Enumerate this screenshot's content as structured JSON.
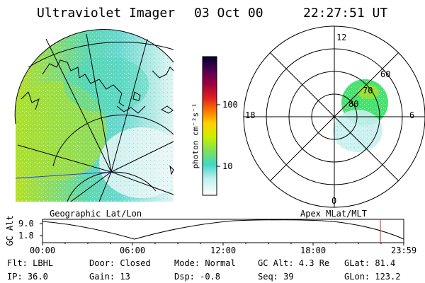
{
  "header": {
    "title": "Ultraviolet Imager",
    "date": "03 Oct 00",
    "time": "22:27:51 UT"
  },
  "colorbar": {
    "unit_label": "photon cm⁻²s⁻¹",
    "ticks": [
      "100",
      "10"
    ]
  },
  "left_panel": {
    "caption": "Geographic Lat/Lon"
  },
  "polar_panel": {
    "caption": "Apex MLat/MLT",
    "mlt_labels": [
      "12",
      "18",
      "6",
      "0"
    ],
    "lat_labels": [
      "60",
      "70",
      "80"
    ]
  },
  "timeline": {
    "ylabel": "GC Alt",
    "yticks": [
      "9.0",
      "1.8"
    ],
    "xticks": [
      "00:00",
      "06:00",
      "12:00",
      "18:00",
      "23:59"
    ]
  },
  "status": {
    "filter": "Flt: LBHL",
    "ip": "IP: 36.0",
    "door": "Door: Closed",
    "gain": "Gain: 13",
    "mode": "Mode: Normal",
    "dsp": "Dsp:   -0.8",
    "gc_alt": "GC Alt: 4.3 Re",
    "seq": "Seq: 39",
    "glat": "GLat: 81.4",
    "glon": "GLon: 123.2"
  },
  "colors": {
    "marker": "#c0282d",
    "coast": "#000000",
    "blue_line": "#1f3fff"
  }
}
